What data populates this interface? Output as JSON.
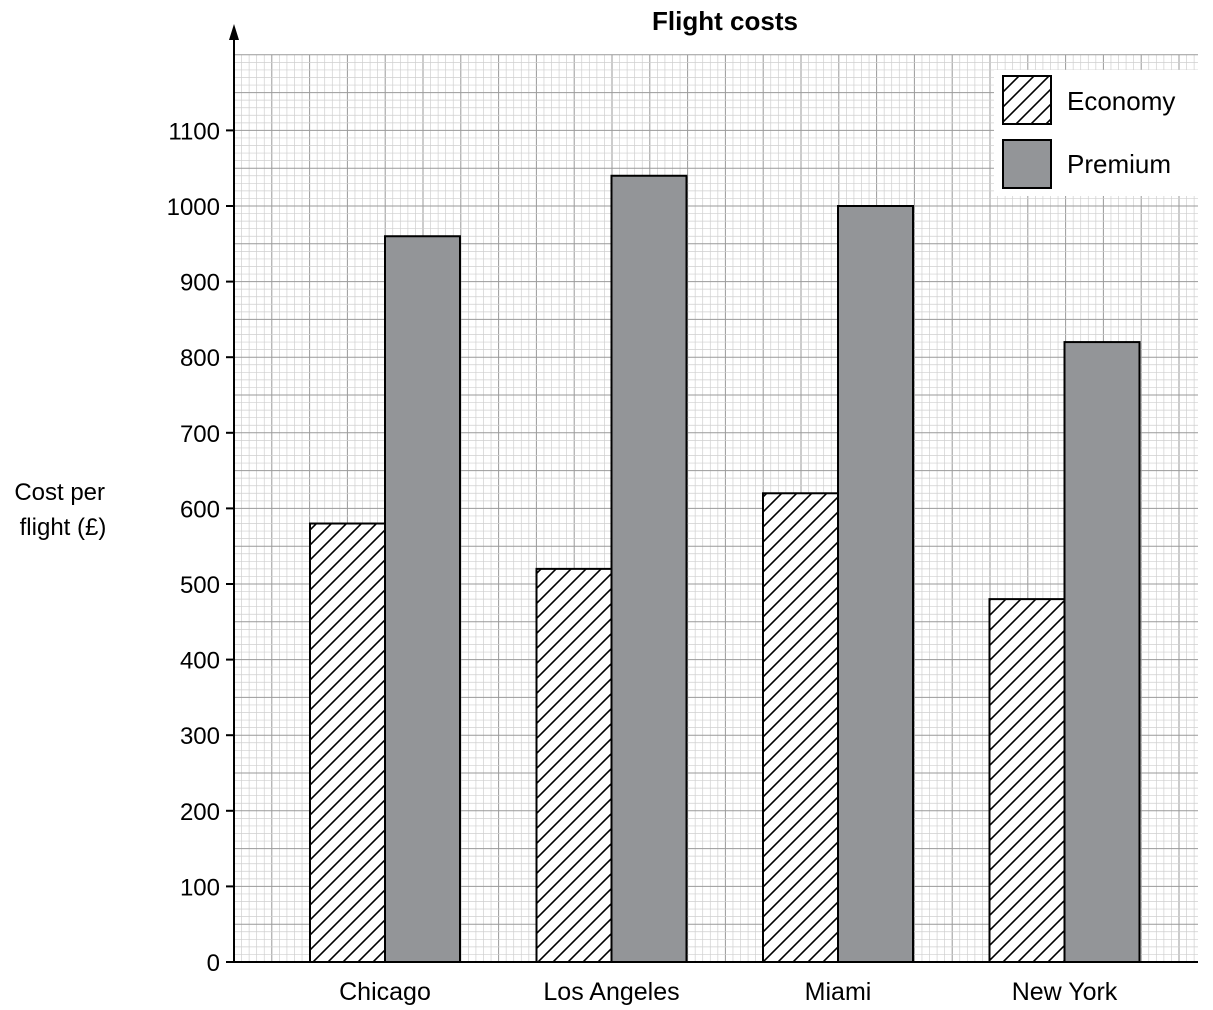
{
  "chart_data": {
    "type": "bar",
    "title": "Flight costs",
    "xlabel": "",
    "ylabel_lines": [
      "Cost per",
      "flight (£)"
    ],
    "categories": [
      "Chicago",
      "Los Angeles",
      "Miami",
      "New York"
    ],
    "series": [
      {
        "name": "Economy",
        "values": [
          580,
          520,
          620,
          480
        ],
        "fill": "hatched",
        "color": "#ffffff"
      },
      {
        "name": "Premium",
        "values": [
          960,
          1040,
          1000,
          820
        ],
        "fill": "solid",
        "color": "#939598"
      }
    ],
    "ylim": [
      0,
      1200
    ],
    "yticks": [
      0,
      100,
      200,
      300,
      400,
      500,
      600,
      700,
      800,
      900,
      1000,
      1100
    ],
    "grid": true,
    "legend_position": "top-right"
  }
}
